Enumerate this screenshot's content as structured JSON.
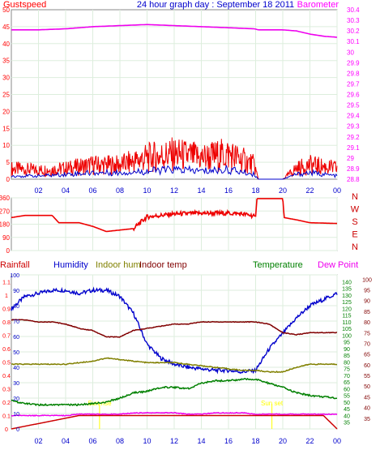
{
  "title": "24 hour graph day : September 18 2011",
  "colors": {
    "gust": "#ee0000",
    "wind": "#0000cc",
    "baro": "#ee00ee",
    "dir": "#ee0000",
    "rain": "#cc0000",
    "humidity": "#0000cc",
    "indoor_hum": "#808000",
    "indoor_temp": "#800000",
    "temperature": "#008000",
    "dewpoint": "#ee00ee",
    "sun": "#ffff00",
    "grid": "#ddeedd",
    "axis_gust": "#ff0000",
    "axis_baro": "#ff00ff",
    "axis_blue": "#0000cc",
    "axis_green": "#008000",
    "axis_darkred": "#800000"
  },
  "time_ticks": [
    "02",
    "04",
    "06",
    "08",
    "10",
    "12",
    "14",
    "16",
    "18",
    "20",
    "22",
    "00"
  ],
  "chart_data": [
    {
      "type": "line",
      "name": "wind",
      "left_label": "Gustspeed",
      "right_label": "Barometer",
      "left_ticks": [
        "0",
        "5",
        "10",
        "15",
        "20",
        "25",
        "30",
        "35",
        "40",
        "45",
        "50"
      ],
      "right_ticks": [
        "28.8",
        "28.9",
        "29",
        "29.1",
        "29.2",
        "29.3",
        "29.4",
        "29.5",
        "29.6",
        "29.7",
        "29.8",
        "29.9",
        "30",
        "30.1",
        "30.2",
        "30.3",
        "30.4"
      ],
      "ylim_left": [
        0,
        50
      ],
      "ylim_right": [
        28.8,
        30.4
      ],
      "x": [
        0,
        2,
        4,
        6,
        8,
        10,
        12,
        14,
        16,
        17.9,
        18.2,
        20,
        21,
        22,
        23,
        24
      ],
      "series": [
        {
          "key": "gust",
          "values": [
            3,
            2.5,
            3,
            4,
            4,
            6,
            7,
            6,
            7,
            4,
            0,
            0,
            3,
            4,
            3.5,
            3
          ]
        },
        {
          "key": "wind",
          "values": [
            1,
            1,
            1.5,
            2,
            2,
            2.5,
            3,
            2.5,
            3,
            1.5,
            0,
            0,
            1.5,
            2,
            1.5,
            1
          ]
        },
        {
          "key": "baro",
          "values": [
            30.21,
            30.21,
            30.22,
            30.24,
            30.25,
            30.26,
            30.25,
            30.24,
            30.23,
            30.22,
            30.21,
            30.21,
            30.2,
            30.17,
            30.15,
            30.14
          ]
        }
      ]
    },
    {
      "type": "line",
      "name": "direction",
      "left_ticks": [
        "0",
        "90",
        "180",
        "270",
        "360"
      ],
      "right_ticks": [
        "N",
        "W",
        "S",
        "E",
        "N"
      ],
      "ylim": [
        0,
        360
      ],
      "x": [
        0,
        1,
        3,
        3.5,
        5,
        6,
        7,
        8,
        9,
        10,
        12,
        14,
        16,
        17,
        18,
        18.1,
        20,
        20.1,
        21,
        22,
        24
      ],
      "values": [
        225,
        240,
        240,
        190,
        190,
        165,
        130,
        140,
        150,
        230,
        250,
        255,
        255,
        250,
        235,
        355,
        355,
        225,
        210,
        190,
        185
      ]
    },
    {
      "type": "line",
      "name": "climate",
      "labels": [
        "Rainfall",
        "Humidity",
        "Indoor hum",
        "Indoor temp",
        "Temperature",
        "Dew Point"
      ],
      "left_red_ticks": [
        "0",
        "0.1",
        "0.2",
        "0.3",
        "0.4",
        "0.5",
        "0.6",
        "0.7",
        "0.8",
        "0.9",
        "1",
        "1.1"
      ],
      "left_blue_ticks": [
        "0",
        "10",
        "20",
        "30",
        "40",
        "50",
        "60",
        "70",
        "80",
        "90",
        "100"
      ],
      "right_green_ticks": [
        "35",
        "40",
        "45",
        "50",
        "55",
        "60",
        "65",
        "70",
        "75",
        "80",
        "85",
        "90",
        "95",
        "100",
        "105",
        "110",
        "115",
        "120",
        "125",
        "130",
        "135",
        "140"
      ],
      "right_darkred_ticks": [
        "35",
        "40",
        "45",
        "50",
        "55",
        "60",
        "65",
        "70",
        "75",
        "80",
        "85",
        "90",
        "95",
        "100"
      ],
      "annotations": [
        "Sun rise",
        "Sun set"
      ],
      "ylim_blue": [
        0,
        100
      ],
      "ylim_green": [
        30,
        145
      ],
      "ylim_rain": [
        0,
        1.15
      ],
      "ylim_darkred": [
        30,
        102
      ],
      "x": [
        0,
        1,
        2,
        3,
        4,
        5,
        6,
        7,
        8,
        9,
        10,
        11,
        12,
        13,
        14,
        15,
        16,
        17,
        18,
        19,
        20,
        21,
        22,
        23,
        24
      ],
      "series": [
        {
          "key": "humidity",
          "values": [
            78,
            86,
            88,
            90,
            90,
            88,
            90,
            90,
            86,
            75,
            55,
            46,
            42,
            40,
            39,
            38,
            38,
            37,
            38,
            52,
            62,
            72,
            80,
            84,
            88
          ]
        },
        {
          "key": "indoor_hum",
          "values": [
            42,
            42,
            42,
            42,
            42,
            43,
            44,
            46,
            45,
            44,
            43,
            43,
            43,
            42,
            41,
            40,
            39,
            38,
            38,
            37,
            37,
            40,
            42,
            42,
            42
          ]
        },
        {
          "key": "indoor_temp",
          "values": [
            81,
            81,
            80,
            80,
            79,
            77,
            76,
            73,
            73,
            76,
            77,
            78,
            79,
            79,
            80,
            80,
            80,
            80,
            80,
            79,
            75,
            74,
            75,
            75,
            75
          ]
        },
        {
          "key": "temperature",
          "values": [
            51,
            49,
            48,
            48,
            48,
            48,
            49,
            50,
            53,
            57,
            58,
            61,
            61,
            60,
            64,
            66,
            66,
            67,
            67,
            64,
            61,
            57,
            55,
            54,
            53
          ]
        },
        {
          "key": "dewpoint",
          "values": [
            40,
            40,
            40,
            40,
            40,
            41,
            41,
            41,
            41,
            42,
            42,
            42,
            42,
            41,
            41,
            42,
            42,
            42,
            41,
            41,
            41,
            41,
            41,
            41,
            41
          ]
        },
        {
          "key": "rain",
          "values": [
            0,
            0.02,
            0.04,
            0.06,
            0.08,
            0.1,
            0.1,
            0.1,
            0.1,
            0.1,
            0.1,
            0.1,
            0.1,
            0.1,
            0.1,
            0.1,
            0.1,
            0.1,
            0.1,
            0.1,
            0.1,
            0.1,
            0.1,
            0.1,
            0
          ]
        }
      ],
      "sunrise_hour": 6.5,
      "sunset_hour": 19.2
    }
  ]
}
